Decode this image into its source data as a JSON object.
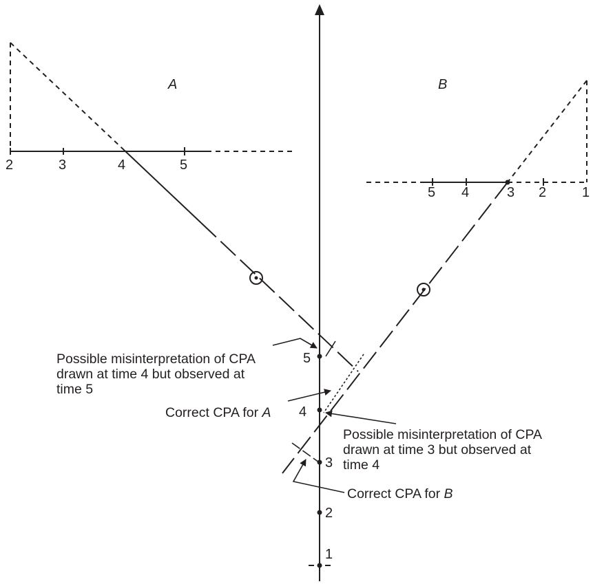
{
  "vessels": {
    "a": {
      "label": "A"
    },
    "b": {
      "label": "B"
    }
  },
  "own_track_times": [
    "1",
    "2",
    "3",
    "4",
    "5"
  ],
  "a_plot_times": [
    "2",
    "3",
    "4",
    "5"
  ],
  "b_plot_times": [
    "5",
    "4",
    "3",
    "2",
    "1"
  ],
  "annotations": {
    "misinterpretation_a": [
      "Possible misinterpretation of CPA",
      "drawn at time 4 but observed at",
      "time 5"
    ],
    "misinterpretation_b": [
      "Possible misinterpretation of CPA",
      "drawn at time 3 but observed at",
      "time 4"
    ],
    "correct_a": {
      "text": "Correct CPA for ",
      "vessel": "A"
    },
    "correct_b": {
      "text": "Correct CPA for ",
      "vessel": "B"
    }
  },
  "colors": {
    "ink": "#231f20",
    "background": "#ffffff"
  }
}
